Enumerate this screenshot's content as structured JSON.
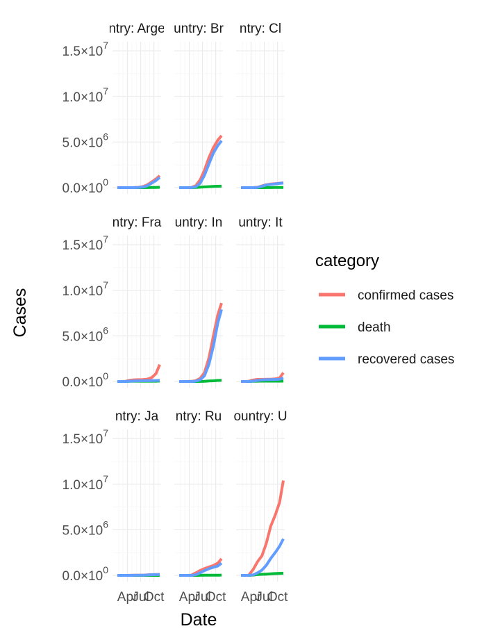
{
  "chart_data": {
    "type": "line",
    "facet_strip_labels": [
      "country: Argentina",
      "country: Brazil",
      "country: Chile",
      "country: France",
      "country: India",
      "country: Italy",
      "country: Japan",
      "country: Russia",
      "country: United States"
    ],
    "xlabel": "Date",
    "ylabel": "Cases",
    "x_tick_labels": [
      "Apr",
      "Jul",
      "Oct"
    ],
    "y_tick_labels": [
      {
        "mantissa": "0.0",
        "exponent": "0"
      },
      {
        "mantissa": "5.0",
        "exponent": "6"
      },
      {
        "mantissa": "1.0",
        "exponent": "7"
      },
      {
        "mantissa": "1.5",
        "exponent": "7"
      }
    ],
    "y_tick_values": [
      0,
      5000000,
      10000000,
      15000000
    ],
    "ylim": [
      0,
      16000000
    ],
    "grid": true,
    "legend": {
      "title": "category",
      "placement": "right",
      "entries": [
        {
          "name": "confirmed cases",
          "color": "#F8766D"
        },
        {
          "name": "death",
          "color": "#00BA38"
        },
        {
          "name": "recovered cases",
          "color": "#619CFF"
        }
      ]
    },
    "x_dates": [
      "2020-01-22",
      "2020-02-15",
      "2020-03-15",
      "2020-04-15",
      "2020-05-15",
      "2020-06-15",
      "2020-07-15",
      "2020-08-15",
      "2020-09-15",
      "2020-10-15",
      "2020-11-10"
    ],
    "facets": [
      {
        "name": "Argentina",
        "series": {
          "confirmed": [
            0,
            0,
            0,
            2000,
            7000,
            30000,
            110000,
            300000,
            620000,
            950000,
            1300000
          ],
          "death": [
            0,
            0,
            0,
            100,
            400,
            900,
            2000,
            6000,
            13000,
            25000,
            35000
          ],
          "recovered": [
            0,
            0,
            0,
            500,
            3000,
            12000,
            50000,
            200000,
            480000,
            780000,
            1120000
          ]
        }
      },
      {
        "name": "Brazil",
        "series": {
          "confirmed": [
            0,
            0,
            200,
            25000,
            200000,
            850000,
            1900000,
            3300000,
            4400000,
            5200000,
            5700000
          ],
          "death": [
            0,
            0,
            5,
            1700,
            14000,
            45000,
            75000,
            110000,
            135000,
            152000,
            162000
          ],
          "recovered": [
            0,
            0,
            0,
            10000,
            80000,
            470000,
            1350000,
            2600000,
            3800000,
            4600000,
            5150000
          ]
        }
      },
      {
        "name": "Chile",
        "series": {
          "confirmed": [
            0,
            0,
            100,
            9000,
            40000,
            180000,
            320000,
            385000,
            440000,
            490000,
            525000
          ],
          "death": [
            0,
            0,
            0,
            100,
            400,
            3400,
            7000,
            10500,
            12000,
            13500,
            14500
          ],
          "recovered": [
            0,
            0,
            0,
            3000,
            20000,
            150000,
            290000,
            360000,
            415000,
            465000,
            500000
          ]
        }
      },
      {
        "name": "France",
        "series": {
          "confirmed": [
            0,
            10,
            4500,
            130000,
            180000,
            195000,
            210000,
            260000,
            420000,
            860000,
            1850000
          ],
          "death": [
            0,
            0,
            90,
            17000,
            27500,
            29500,
            30000,
            30500,
            31500,
            33500,
            42000
          ],
          "recovered": [
            0,
            0,
            10,
            33000,
            62000,
            72000,
            79000,
            84000,
            95000,
            110000,
            135000
          ]
        }
      },
      {
        "name": "India",
        "series": {
          "confirmed": [
            0,
            3,
            110,
            12000,
            82000,
            340000,
            970000,
            2600000,
            5000000,
            7300000,
            8600000
          ],
          "death": [
            0,
            0,
            2,
            400,
            2600,
            10000,
            25000,
            50000,
            80000,
            112000,
            127000
          ],
          "recovered": [
            0,
            0,
            10,
            1500,
            28000,
            190000,
            620000,
            1900000,
            3900000,
            6400000,
            7900000
          ]
        }
      },
      {
        "name": "Italy",
        "series": {
          "confirmed": [
            0,
            3,
            25000,
            165000,
            225000,
            238000,
            244000,
            254000,
            292000,
            380000,
            960000
          ],
          "death": [
            0,
            0,
            1800,
            21500,
            31500,
            34500,
            35000,
            35400,
            35700,
            36400,
            41800
          ],
          "recovered": [
            0,
            0,
            2300,
            38000,
            115000,
            180000,
            196000,
            204000,
            220000,
            247000,
            380000
          ]
        }
      },
      {
        "name": "Japan",
        "series": {
          "confirmed": [
            0,
            50,
            800,
            8500,
            16000,
            17500,
            23000,
            56000,
            77000,
            92000,
            110000
          ],
          "death": [
            0,
            0,
            25,
            150,
            700,
            900,
            990,
            1100,
            1500,
            1650,
            1850
          ],
          "recovered": [
            0,
            0,
            150,
            900,
            11000,
            15500,
            17000,
            40000,
            69000,
            84000,
            97000
          ]
        }
      },
      {
        "name": "Russia",
        "series": {
          "confirmed": [
            0,
            2,
            60,
            25000,
            260000,
            540000,
            750000,
            920000,
            1080000,
            1340000,
            1820000
          ],
          "death": [
            0,
            0,
            0,
            200,
            2500,
            7000,
            12000,
            16000,
            19000,
            23000,
            31000
          ],
          "recovered": [
            0,
            0,
            5,
            2000,
            60000,
            290000,
            520000,
            730000,
            890000,
            1020000,
            1340000
          ]
        }
      },
      {
        "name": "United States",
        "series": {
          "confirmed": [
            0,
            15,
            3500,
            640000,
            1480000,
            2150000,
            3500000,
            5400000,
            6600000,
            8000000,
            10400000
          ],
          "death": [
            0,
            0,
            60,
            32000,
            88000,
            117000,
            138000,
            171000,
            197000,
            219000,
            240000
          ],
          "recovered": [
            0,
            0,
            12,
            52000,
            270000,
            580000,
            1100000,
            1860000,
            2500000,
            3200000,
            4000000
          ]
        }
      }
    ]
  }
}
